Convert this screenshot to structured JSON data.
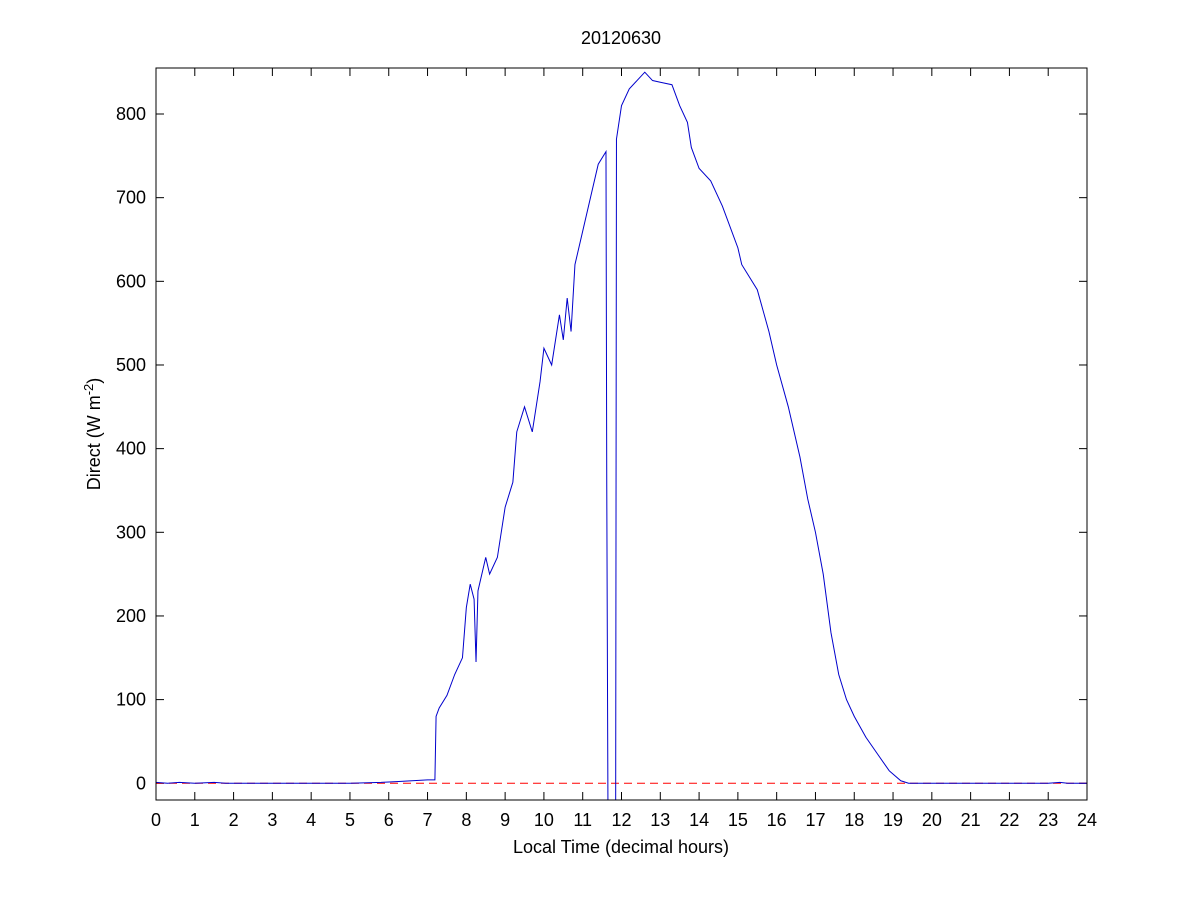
{
  "chart_data": {
    "type": "line",
    "title": "20120630",
    "xlabel": "Local Time (decimal hours)",
    "ylabel": {
      "text": "Direct (W m",
      "superscript": "-2",
      "suffix": ")"
    },
    "xlim": [
      0,
      24
    ],
    "ylim": [
      -20,
      855
    ],
    "xticks": [
      0,
      1,
      2,
      3,
      4,
      5,
      6,
      7,
      8,
      9,
      10,
      11,
      12,
      13,
      14,
      15,
      16,
      17,
      18,
      19,
      20,
      21,
      22,
      23,
      24
    ],
    "yticks": [
      0,
      100,
      200,
      300,
      400,
      500,
      600,
      700,
      800
    ],
    "reference_line": {
      "value": 0,
      "color": "#ff0000",
      "style": "dashed"
    },
    "series": [
      {
        "color": "#0000cc",
        "x": [
          0,
          0.3,
          0.6,
          1.0,
          1.5,
          1.8,
          2.2,
          3,
          4,
          5,
          5.8,
          6.2,
          6.6,
          7.0,
          7.19,
          7.22,
          7.3,
          7.5,
          7.7,
          7.9,
          8.0,
          8.1,
          8.2,
          8.25,
          8.3,
          8.5,
          8.6,
          8.8,
          9.0,
          9.2,
          9.3,
          9.5,
          9.7,
          9.9,
          10.0,
          10.2,
          10.4,
          10.5,
          10.6,
          10.7,
          10.8,
          11.0,
          11.2,
          11.4,
          11.6,
          11.62,
          11.65,
          11.85,
          11.87,
          12.0,
          12.2,
          12.4,
          12.6,
          12.8,
          13.0,
          13.3,
          13.5,
          13.7,
          13.8,
          14.0,
          14.3,
          14.6,
          15.0,
          15.1,
          15.5,
          15.8,
          16.0,
          16.3,
          16.6,
          16.8,
          17.0,
          17.2,
          17.4,
          17.6,
          17.8,
          18.0,
          18.3,
          18.6,
          18.9,
          19.2,
          19.4,
          20,
          21,
          22,
          23,
          23.3,
          23.5,
          24
        ],
        "values": [
          1,
          0,
          1,
          0,
          1,
          0,
          0,
          0,
          0,
          0,
          1,
          2,
          3,
          4,
          4,
          80,
          90,
          105,
          130,
          150,
          210,
          238,
          220,
          145,
          230,
          270,
          250,
          270,
          330,
          360,
          420,
          450,
          420,
          480,
          520,
          500,
          560,
          530,
          580,
          540,
          620,
          660,
          700,
          740,
          755,
          355,
          -20,
          -20,
          770,
          810,
          830,
          840,
          850,
          840,
          838,
          835,
          810,
          790,
          760,
          735,
          720,
          690,
          640,
          620,
          590,
          540,
          500,
          450,
          390,
          340,
          300,
          250,
          180,
          130,
          100,
          80,
          55,
          35,
          15,
          3,
          0,
          0,
          0,
          0,
          0,
          1,
          0,
          0
        ]
      }
    ]
  }
}
